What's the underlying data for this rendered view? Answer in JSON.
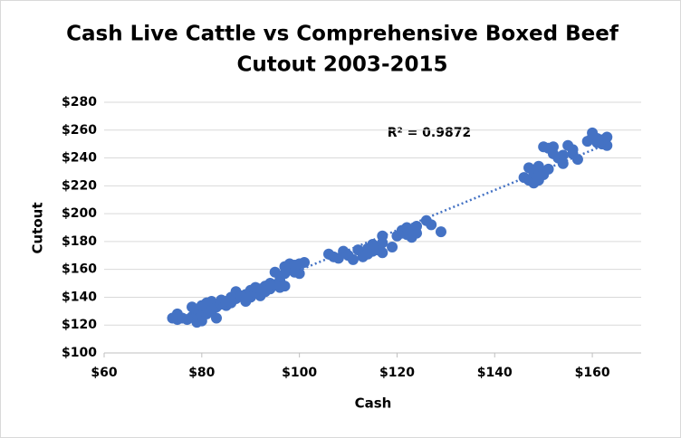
{
  "chart_data": {
    "type": "scatter",
    "title": [
      "Cash Live Cattle vs Comprehensive Boxed Beef",
      "Cutout 2003-2015"
    ],
    "x_label": "Cash",
    "y_label": "Cutout",
    "annotation": "R² = 0.9872",
    "color": "#4472c4",
    "trendline_color": "#4472c4",
    "grid": true,
    "xlim": [
      60,
      170
    ],
    "ylim": [
      100,
      280
    ],
    "xticks": [
      {
        "value": 60,
        "label": "$60"
      },
      {
        "value": 80,
        "label": "$80"
      },
      {
        "value": 100,
        "label": "$100"
      },
      {
        "value": 120,
        "label": "$120"
      },
      {
        "value": 140,
        "label": "$140"
      },
      {
        "value": 160,
        "label": "$160"
      }
    ],
    "yticks": [
      {
        "value": 100,
        "label": "$100"
      },
      {
        "value": 120,
        "label": "$120"
      },
      {
        "value": 140,
        "label": "$140"
      },
      {
        "value": 160,
        "label": "$160"
      },
      {
        "value": 180,
        "label": "$180"
      },
      {
        "value": 200,
        "label": "$200"
      },
      {
        "value": 220,
        "label": "$220"
      },
      {
        "value": 240,
        "label": "$240"
      },
      {
        "value": 260,
        "label": "$260"
      },
      {
        "value": 280,
        "label": "$280"
      }
    ],
    "trendline": {
      "x": [
        74,
        163
      ],
      "y": [
        122,
        250
      ]
    },
    "x": [
      74,
      75,
      75,
      76,
      77,
      78,
      78,
      79,
      79,
      79,
      80,
      80,
      80,
      80,
      81,
      81,
      81,
      82,
      82,
      82,
      83,
      83,
      84,
      84,
      85,
      85,
      86,
      86,
      87,
      87,
      88,
      89,
      89,
      90,
      90,
      91,
      91,
      92,
      92,
      93,
      93,
      94,
      94,
      95,
      95,
      96,
      96,
      96,
      97,
      97,
      97,
      98,
      98,
      99,
      99,
      100,
      100,
      101,
      106,
      107,
      108,
      109,
      110,
      111,
      112,
      113,
      113,
      114,
      114,
      115,
      115,
      116,
      117,
      117,
      117,
      119,
      120,
      121,
      121,
      122,
      122,
      123,
      123,
      124,
      124,
      126,
      127,
      129,
      146,
      147,
      147,
      148,
      148,
      149,
      149,
      149,
      150,
      150,
      151,
      151,
      152,
      152,
      153,
      154,
      154,
      155,
      156,
      156,
      157,
      159,
      160,
      160,
      161,
      161,
      162,
      162,
      163,
      163
    ],
    "values": [
      125,
      128,
      124,
      125,
      124,
      126,
      133,
      122,
      128,
      131,
      123,
      127,
      130,
      134,
      128,
      132,
      136,
      130,
      134,
      137,
      125,
      133,
      135,
      138,
      134,
      137,
      140,
      136,
      144,
      139,
      141,
      142,
      137,
      145,
      140,
      143,
      147,
      141,
      146,
      148,
      144,
      150,
      146,
      149,
      158,
      152,
      155,
      147,
      157,
      162,
      148,
      160,
      164,
      163,
      158,
      164,
      157,
      165,
      171,
      169,
      168,
      173,
      170,
      167,
      174,
      172,
      169,
      175,
      171,
      173,
      178,
      174,
      172,
      179,
      184,
      176,
      184,
      186,
      188,
      185,
      190,
      183,
      188,
      186,
      191,
      195,
      192,
      187,
      226,
      224,
      233,
      222,
      229,
      234,
      224,
      231,
      228,
      248,
      247,
      232,
      248,
      243,
      240,
      242,
      236,
      249,
      243,
      246,
      239,
      252,
      255,
      258,
      254,
      251,
      250,
      253,
      255,
      249
    ]
  }
}
